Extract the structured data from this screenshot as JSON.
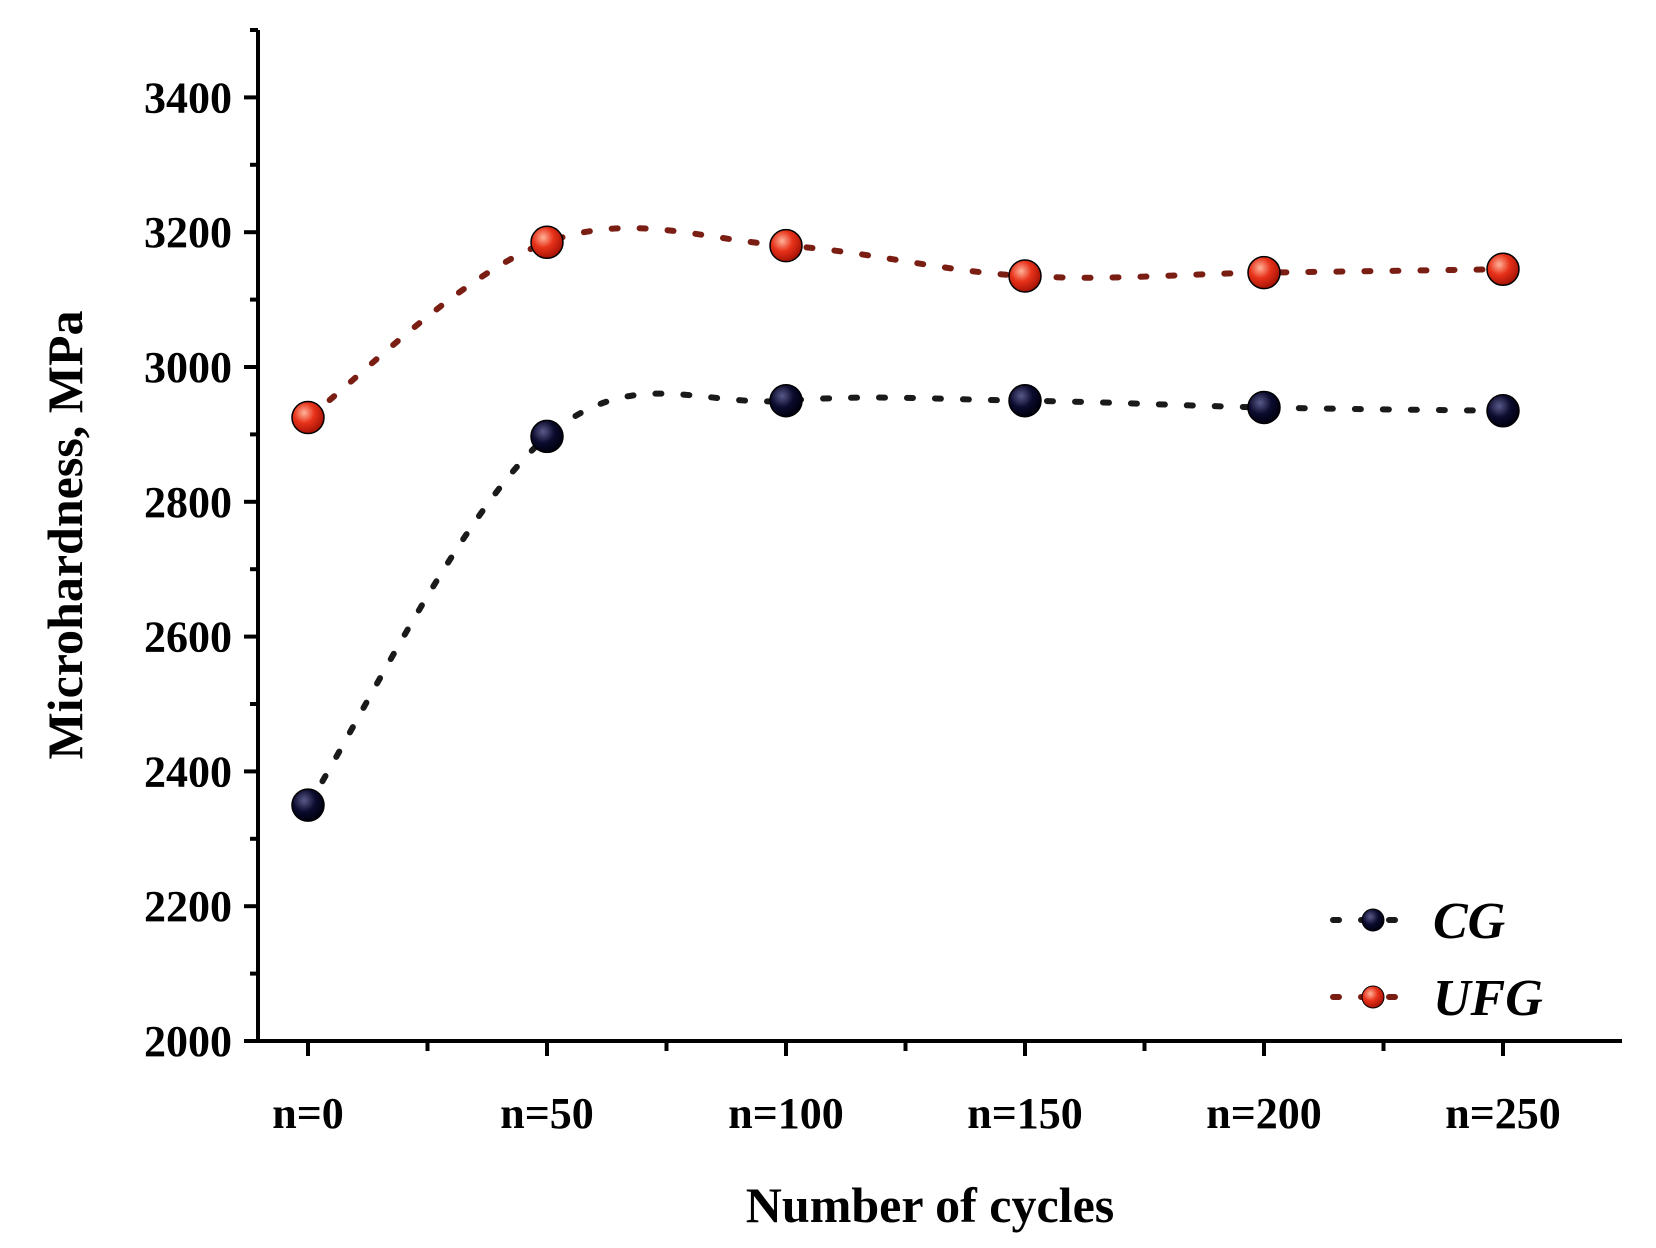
{
  "chart_data": {
    "type": "scatter",
    "title": "",
    "xlabel": "Number of cycles",
    "ylabel": "Microhardness, MPa",
    "categories": [
      "n=0",
      "n=50",
      "n=100",
      "n=150",
      "n=200",
      "n=250"
    ],
    "ylim": [
      2000,
      3500
    ],
    "yticks": [
      2000,
      2200,
      2400,
      2600,
      2800,
      3000,
      3200,
      3400
    ],
    "grid": false,
    "legend_position": "bottom-right",
    "line_style": "dotted",
    "series": [
      {
        "name": "CG",
        "values": [
          2350,
          2897,
          2950,
          2950,
          2940,
          2935
        ],
        "marker_color": "#0b0b2e",
        "marker_highlight": "#4a4a78",
        "line_color": "#1a1a1a"
      },
      {
        "name": "UFG",
        "values": [
          2925,
          3185,
          3180,
          3135,
          3140,
          3145
        ],
        "marker_color": "#e02410",
        "marker_highlight": "#ff9a80",
        "line_color": "#7a1e14"
      }
    ]
  }
}
